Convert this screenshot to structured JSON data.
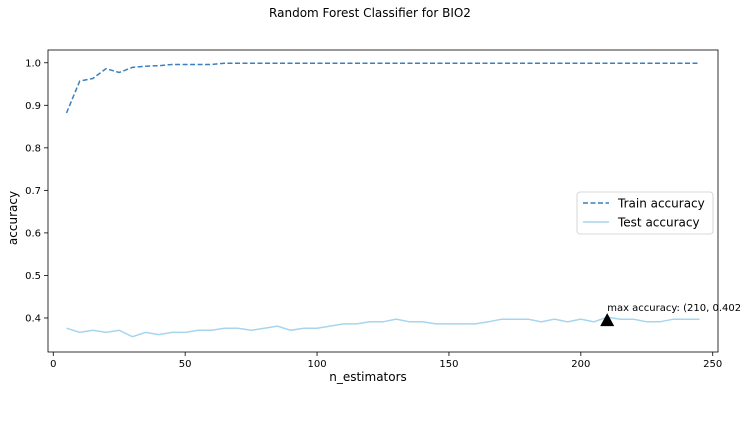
{
  "chart_data": {
    "type": "line",
    "title": "Random Forest Classifier for BIO2",
    "xlabel": "n_estimators",
    "ylabel": "accuracy",
    "xlim": [
      -2,
      252
    ],
    "ylim": [
      0.32,
      1.03
    ],
    "xticks": [
      0,
      50,
      100,
      150,
      200,
      250
    ],
    "yticks": [
      0.4,
      0.5,
      0.6,
      0.7,
      0.8,
      0.9,
      1.0
    ],
    "grid": false,
    "legend_position": "center-right",
    "x": [
      5,
      10,
      15,
      20,
      25,
      30,
      35,
      40,
      45,
      50,
      55,
      60,
      65,
      70,
      75,
      80,
      85,
      90,
      95,
      100,
      105,
      110,
      115,
      120,
      125,
      130,
      135,
      140,
      145,
      150,
      155,
      160,
      165,
      170,
      175,
      180,
      185,
      190,
      195,
      200,
      205,
      210,
      215,
      220,
      225,
      230,
      235,
      240,
      245
    ],
    "series": [
      {
        "name": "Train accuracy",
        "style": "dashed",
        "color": "#3a7fc0",
        "values": [
          0.882,
          0.957,
          0.963,
          0.986,
          0.977,
          0.989,
          0.992,
          0.993,
          0.996,
          0.996,
          0.996,
          0.996,
          0.999,
          0.999,
          0.999,
          0.999,
          0.999,
          0.999,
          0.999,
          0.999,
          0.999,
          0.999,
          0.999,
          0.999,
          0.999,
          0.999,
          0.999,
          0.999,
          0.999,
          0.999,
          0.999,
          0.999,
          0.999,
          0.999,
          0.999,
          0.999,
          0.999,
          0.999,
          0.999,
          0.999,
          0.999,
          0.999,
          0.999,
          0.999,
          0.999,
          0.999,
          0.999,
          0.999,
          0.999
        ]
      },
      {
        "name": "Test accuracy",
        "style": "solid",
        "color": "#a6d5ee",
        "values": [
          0.376,
          0.366,
          0.371,
          0.366,
          0.371,
          0.356,
          0.366,
          0.361,
          0.366,
          0.366,
          0.371,
          0.371,
          0.376,
          0.376,
          0.371,
          0.376,
          0.381,
          0.371,
          0.376,
          0.376,
          0.381,
          0.386,
          0.386,
          0.391,
          0.391,
          0.397,
          0.391,
          0.391,
          0.386,
          0.386,
          0.386,
          0.386,
          0.391,
          0.397,
          0.397,
          0.397,
          0.391,
          0.397,
          0.391,
          0.397,
          0.391,
          0.402,
          0.397,
          0.397,
          0.391,
          0.391,
          0.397,
          0.397,
          0.397
        ]
      }
    ],
    "annotation": {
      "text": "max accuracy: (210, 0.402)",
      "x": 210,
      "y": 0.395
    }
  }
}
